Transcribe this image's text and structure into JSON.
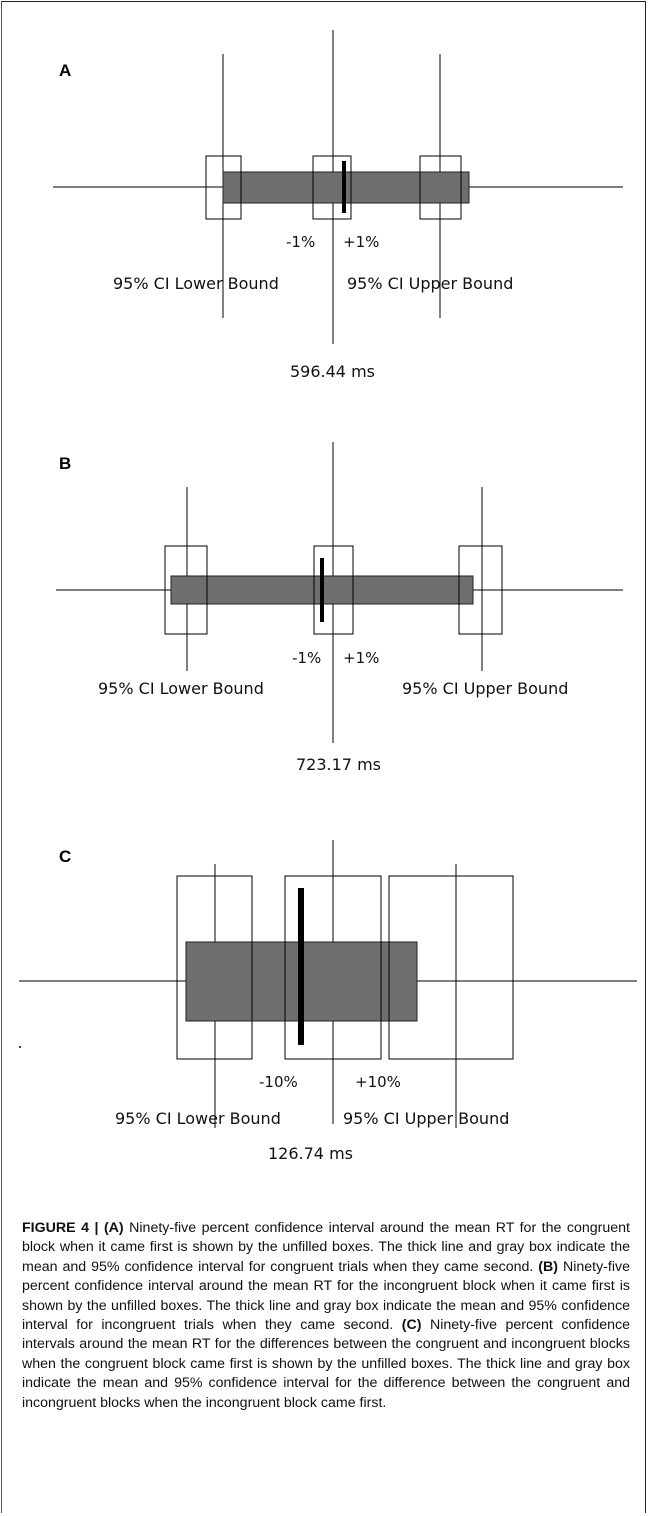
{
  "panels": [
    {
      "label": "A",
      "lower_label": "95% CI Lower Bound",
      "upper_label": "95% CI Upper Bound",
      "minus_label": "-1%",
      "plus_label": "+1%",
      "value_label": "596.44 ms"
    },
    {
      "label": "B",
      "lower_label": "95% CI Lower Bound",
      "upper_label": "95% CI Upper Bound",
      "minus_label": "-1%",
      "plus_label": "+1%",
      "value_label": "723.17 ms"
    },
    {
      "label": "C",
      "lower_label": "95% CI Lower Bound",
      "upper_label": "95% CI Upper Bound",
      "minus_label": "-10%",
      "plus_label": "+10%",
      "value_label": "126.74 ms"
    }
  ],
  "caption": {
    "figure_label": "FIGURE 4 |",
    "a_label": "(A)",
    "a_text": " Ninety-five percent confidence interval around the mean RT for the congruent block when it came first is shown by the unfilled boxes. The thick line and gray box indicate the mean and 95% confidence interval for congruent trials when they came second. ",
    "b_label": "(B)",
    "b_text": " Ninety-five percent confidence interval around the mean RT for the incongruent block when it came first is shown by the unfilled boxes. The thick line and gray box indicate the mean and 95% confidence interval for incongruent trials when they came second. ",
    "c_label": "(C)",
    "c_text": " Ninety-five percent confidence intervals around the mean RT for the differences between the congruent and incongruent blocks when the congruent block came first is shown by the unfilled boxes. The thick line and gray box indicate the mean and 95% confidence interval for the difference between the congruent and incongruent blocks when the incongruent block came first."
  },
  "colors": {
    "gray_box": "#6f6f6f",
    "line": "#000000"
  }
}
